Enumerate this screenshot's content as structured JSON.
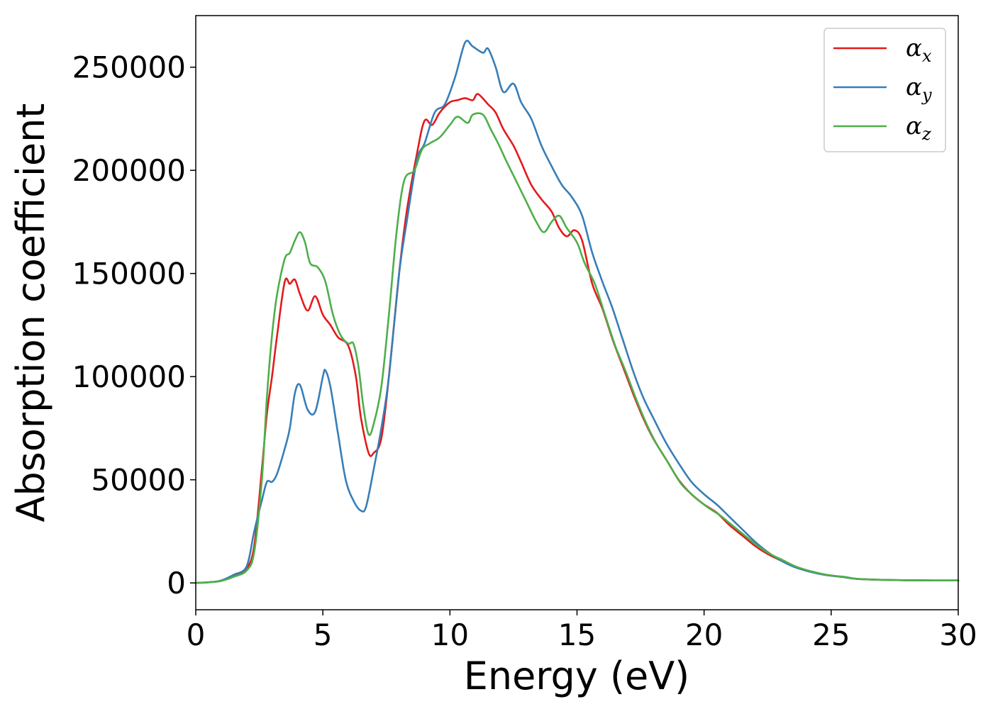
{
  "chart_data": {
    "type": "line",
    "title": "",
    "xlabel": "Energy (eV)",
    "ylabel": "Absorption coefficient",
    "xlim": [
      0,
      30
    ],
    "ylim": [
      -13000,
      275000
    ],
    "xticks": [
      0,
      5,
      10,
      15,
      20,
      25,
      30
    ],
    "xtick_labels": [
      "0",
      "5",
      "10",
      "15",
      "20",
      "25",
      "30"
    ],
    "yticks": [
      0,
      50000,
      100000,
      150000,
      200000,
      250000
    ],
    "ytick_labels": [
      "0",
      "50000",
      "100000",
      "150000",
      "200000",
      "250000"
    ],
    "grid": false,
    "legend_position": "top-right",
    "series": [
      {
        "name": "α",
        "subscript": "x",
        "color": "#e41a1c",
        "points": [
          [
            0,
            0
          ],
          [
            0.5,
            300
          ],
          [
            1,
            1000
          ],
          [
            1.5,
            3500
          ],
          [
            2,
            7000
          ],
          [
            2.3,
            18000
          ],
          [
            2.6,
            55000
          ],
          [
            2.8,
            82000
          ],
          [
            3.0,
            100000
          ],
          [
            3.2,
            120000
          ],
          [
            3.5,
            146000
          ],
          [
            3.7,
            145000
          ],
          [
            3.9,
            147000
          ],
          [
            4.1,
            140000
          ],
          [
            4.4,
            132000
          ],
          [
            4.7,
            139000
          ],
          [
            5.0,
            130000
          ],
          [
            5.3,
            125000
          ],
          [
            5.6,
            119000
          ],
          [
            6.0,
            115000
          ],
          [
            6.3,
            100000
          ],
          [
            6.5,
            80000
          ],
          [
            6.8,
            63000
          ],
          [
            7.0,
            63000
          ],
          [
            7.3,
            70000
          ],
          [
            7.6,
            100000
          ],
          [
            8.0,
            150000
          ],
          [
            8.3,
            180000
          ],
          [
            8.7,
            208000
          ],
          [
            9.0,
            224000
          ],
          [
            9.3,
            222000
          ],
          [
            9.6,
            228000
          ],
          [
            10.0,
            233000
          ],
          [
            10.3,
            234000
          ],
          [
            10.6,
            235000
          ],
          [
            10.9,
            234000
          ],
          [
            11.1,
            237000
          ],
          [
            11.5,
            232000
          ],
          [
            11.8,
            228000
          ],
          [
            12.1,
            220000
          ],
          [
            12.5,
            212000
          ],
          [
            12.8,
            204000
          ],
          [
            13.2,
            193000
          ],
          [
            13.6,
            186000
          ],
          [
            14.0,
            180000
          ],
          [
            14.3,
            172000
          ],
          [
            14.6,
            168000
          ],
          [
            14.9,
            171000
          ],
          [
            15.2,
            166000
          ],
          [
            15.6,
            145000
          ],
          [
            16.0,
            133000
          ],
          [
            16.4,
            118000
          ],
          [
            16.8,
            105000
          ],
          [
            17.2,
            92000
          ],
          [
            17.6,
            80000
          ],
          [
            18.0,
            70000
          ],
          [
            18.5,
            60000
          ],
          [
            19.0,
            50000
          ],
          [
            19.5,
            43000
          ],
          [
            20.0,
            38000
          ],
          [
            20.5,
            34000
          ],
          [
            21.0,
            28000
          ],
          [
            21.5,
            23000
          ],
          [
            22.0,
            18000
          ],
          [
            22.5,
            14000
          ],
          [
            23.0,
            11000
          ],
          [
            23.5,
            8000
          ],
          [
            24.0,
            6000
          ],
          [
            24.5,
            4500
          ],
          [
            25.0,
            3500
          ],
          [
            25.5,
            2800
          ],
          [
            26.0,
            2000
          ],
          [
            27.0,
            1500
          ],
          [
            28.0,
            1300
          ],
          [
            29.0,
            1200
          ],
          [
            30.0,
            1200
          ]
        ]
      },
      {
        "name": "α",
        "subscript": "y",
        "color": "#377eb8",
        "points": [
          [
            0,
            0
          ],
          [
            0.5,
            300
          ],
          [
            1,
            1200
          ],
          [
            1.5,
            4000
          ],
          [
            2,
            8000
          ],
          [
            2.3,
            25000
          ],
          [
            2.6,
            40000
          ],
          [
            2.8,
            49000
          ],
          [
            3.0,
            49000
          ],
          [
            3.2,
            53000
          ],
          [
            3.5,
            65000
          ],
          [
            3.7,
            75000
          ],
          [
            3.9,
            92000
          ],
          [
            4.1,
            96000
          ],
          [
            4.4,
            84000
          ],
          [
            4.7,
            83000
          ],
          [
            5.0,
            100000
          ],
          [
            5.1,
            103000
          ],
          [
            5.3,
            95000
          ],
          [
            5.6,
            72000
          ],
          [
            5.9,
            50000
          ],
          [
            6.2,
            40000
          ],
          [
            6.5,
            35000
          ],
          [
            6.7,
            37000
          ],
          [
            7.0,
            55000
          ],
          [
            7.3,
            75000
          ],
          [
            7.6,
            100000
          ],
          [
            8.0,
            150000
          ],
          [
            8.3,
            175000
          ],
          [
            8.7,
            205000
          ],
          [
            9.0,
            213000
          ],
          [
            9.4,
            228000
          ],
          [
            9.8,
            232000
          ],
          [
            10.2,
            245000
          ],
          [
            10.6,
            262000
          ],
          [
            10.9,
            260000
          ],
          [
            11.3,
            257000
          ],
          [
            11.5,
            259000
          ],
          [
            11.8,
            250000
          ],
          [
            12.1,
            238000
          ],
          [
            12.5,
            242000
          ],
          [
            12.8,
            233000
          ],
          [
            13.2,
            225000
          ],
          [
            13.6,
            212000
          ],
          [
            14.0,
            202000
          ],
          [
            14.4,
            193000
          ],
          [
            14.8,
            187000
          ],
          [
            15.2,
            178000
          ],
          [
            15.6,
            160000
          ],
          [
            16.0,
            146000
          ],
          [
            16.4,
            133000
          ],
          [
            16.8,
            118000
          ],
          [
            17.2,
            103000
          ],
          [
            17.6,
            90000
          ],
          [
            18.0,
            80000
          ],
          [
            18.5,
            68000
          ],
          [
            19.0,
            58000
          ],
          [
            19.5,
            49000
          ],
          [
            20.0,
            43000
          ],
          [
            20.5,
            38000
          ],
          [
            21.0,
            32000
          ],
          [
            21.5,
            26000
          ],
          [
            22.0,
            20000
          ],
          [
            22.5,
            15000
          ],
          [
            23.0,
            11000
          ],
          [
            23.5,
            8000
          ],
          [
            24.0,
            6000
          ],
          [
            24.5,
            4500
          ],
          [
            25.0,
            3500
          ],
          [
            25.5,
            2800
          ],
          [
            26.0,
            2000
          ],
          [
            27.0,
            1500
          ],
          [
            28.0,
            1300
          ],
          [
            29.0,
            1200
          ],
          [
            30.0,
            1200
          ]
        ]
      },
      {
        "name": "α",
        "subscript": "z",
        "color": "#4daf4a",
        "points": [
          [
            0,
            0
          ],
          [
            0.5,
            300
          ],
          [
            1,
            1000
          ],
          [
            1.5,
            3000
          ],
          [
            2,
            6000
          ],
          [
            2.3,
            15000
          ],
          [
            2.6,
            50000
          ],
          [
            2.8,
            90000
          ],
          [
            3.0,
            120000
          ],
          [
            3.2,
            140000
          ],
          [
            3.5,
            157000
          ],
          [
            3.7,
            160000
          ],
          [
            3.9,
            166000
          ],
          [
            4.1,
            170000
          ],
          [
            4.3,
            165000
          ],
          [
            4.5,
            155000
          ],
          [
            4.8,
            153000
          ],
          [
            5.1,
            146000
          ],
          [
            5.4,
            130000
          ],
          [
            5.7,
            120000
          ],
          [
            6.0,
            116000
          ],
          [
            6.2,
            116000
          ],
          [
            6.4,
            105000
          ],
          [
            6.6,
            85000
          ],
          [
            6.8,
            72000
          ],
          [
            7.0,
            77000
          ],
          [
            7.3,
            95000
          ],
          [
            7.6,
            130000
          ],
          [
            7.9,
            170000
          ],
          [
            8.2,
            195000
          ],
          [
            8.6,
            200000
          ],
          [
            8.9,
            210000
          ],
          [
            9.2,
            213000
          ],
          [
            9.6,
            216000
          ],
          [
            10.0,
            222000
          ],
          [
            10.3,
            226000
          ],
          [
            10.7,
            223000
          ],
          [
            10.9,
            227000
          ],
          [
            11.3,
            227000
          ],
          [
            11.6,
            220000
          ],
          [
            11.9,
            213000
          ],
          [
            12.2,
            205000
          ],
          [
            12.6,
            195000
          ],
          [
            13.0,
            185000
          ],
          [
            13.4,
            175000
          ],
          [
            13.7,
            170000
          ],
          [
            14.0,
            175000
          ],
          [
            14.3,
            178000
          ],
          [
            14.6,
            172000
          ],
          [
            15.0,
            165000
          ],
          [
            15.3,
            155000
          ],
          [
            15.7,
            145000
          ],
          [
            16.1,
            130000
          ],
          [
            16.5,
            115000
          ],
          [
            16.9,
            103000
          ],
          [
            17.3,
            90000
          ],
          [
            17.7,
            78000
          ],
          [
            18.1,
            68000
          ],
          [
            18.6,
            58000
          ],
          [
            19.1,
            48000
          ],
          [
            19.6,
            42000
          ],
          [
            20.1,
            37000
          ],
          [
            20.6,
            33000
          ],
          [
            21.1,
            28000
          ],
          [
            21.6,
            23000
          ],
          [
            22.1,
            18000
          ],
          [
            22.6,
            14000
          ],
          [
            23.1,
            11000
          ],
          [
            23.6,
            8000
          ],
          [
            24.1,
            6000
          ],
          [
            24.6,
            4500
          ],
          [
            25.1,
            3500
          ],
          [
            25.6,
            2800
          ],
          [
            26.0,
            2000
          ],
          [
            27.0,
            1500
          ],
          [
            28.0,
            1300
          ],
          [
            29.0,
            1200
          ],
          [
            30.0,
            1200
          ]
        ]
      }
    ]
  }
}
